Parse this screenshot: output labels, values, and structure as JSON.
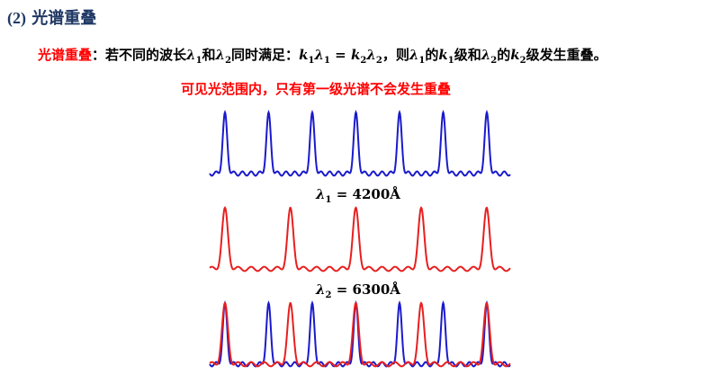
{
  "heading": {
    "number": "(2)",
    "title": "光谱重叠"
  },
  "definition": {
    "term": "光谱重叠",
    "p1": "：若不同的波长",
    "lambda": "λ",
    "sub1": "1",
    "sub2": "2",
    "and": "和",
    "p2": "同时满足：",
    "k": "k",
    "eq": " = ",
    "p3": "，则",
    "of": "的",
    "level_and": "级和",
    "p4": "级发生重叠。"
  },
  "note": "可见光范围内，只有第一级光谱不会发生重叠",
  "colors": {
    "blue": "#1a1acc",
    "red": "#e81f1f",
    "heading": "#1f3864",
    "emphasis": "#ff0000"
  },
  "spectra": {
    "blue_label": {
      "symbol": "λ",
      "sub": "1",
      "value": " = 4200Å"
    },
    "red_label": {
      "symbol": "λ",
      "sub": "2",
      "value": " = 6300Å"
    }
  }
}
